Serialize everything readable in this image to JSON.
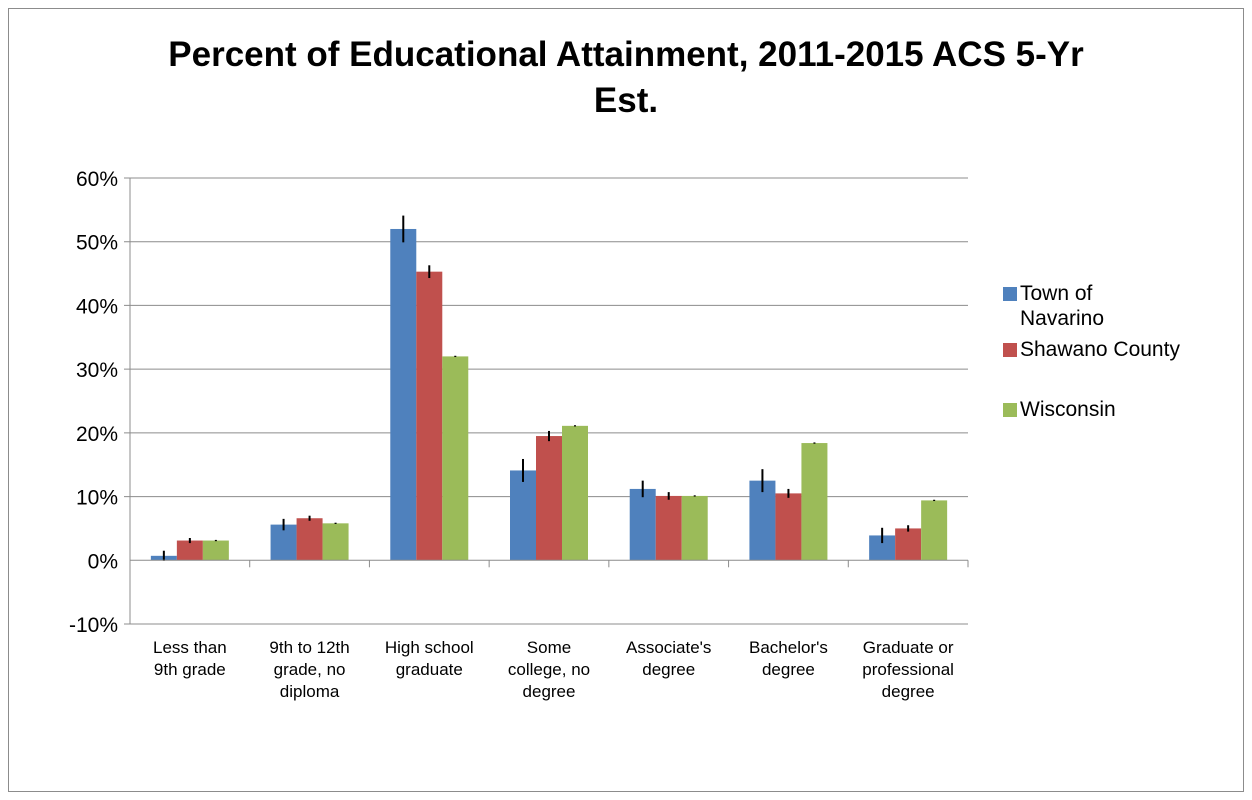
{
  "chart_data": {
    "type": "bar",
    "title": "Percent of Educational Attainment, 2011-2015 ACS 5-Yr Est.",
    "title_lines": [
      "Percent of Educational Attainment, 2011-2015 ACS 5-Yr",
      "Est."
    ],
    "xlabel": "",
    "ylabel": "",
    "ylim": [
      -10,
      60
    ],
    "yticks": [
      -10,
      0,
      10,
      20,
      30,
      40,
      50,
      60
    ],
    "ytick_labels": [
      "-10%",
      "0%",
      "10%",
      "20%",
      "30%",
      "40%",
      "50%",
      "60%"
    ],
    "grid": true,
    "legend_position": "right",
    "categories": [
      "Less than 9th grade",
      "9th to 12th grade, no diploma",
      "High school graduate",
      "Some college, no degree",
      "Associate's degree",
      "Bachelor's degree",
      "Graduate or professional degree"
    ],
    "category_lines": [
      [
        "Less than",
        "9th grade"
      ],
      [
        "9th to 12th",
        "grade, no",
        "diploma"
      ],
      [
        "High school",
        "graduate"
      ],
      [
        "Some",
        "college, no",
        "degree"
      ],
      [
        "Associate's",
        "degree"
      ],
      [
        "Bachelor's",
        "degree"
      ],
      [
        "Graduate or",
        "professional",
        "degree"
      ]
    ],
    "series": [
      {
        "name": "Town of Navarino",
        "legend_lines": [
          "Town of",
          "Navarino"
        ],
        "color": "#4f81bd",
        "values": [
          0.7,
          5.6,
          52.0,
          14.1,
          11.2,
          12.5,
          3.9
        ],
        "errors": [
          0.8,
          0.9,
          2.1,
          1.8,
          1.3,
          1.8,
          1.2
        ]
      },
      {
        "name": "Shawano County",
        "legend_lines": [
          "Shawano County"
        ],
        "color": "#c0504d",
        "values": [
          3.1,
          6.6,
          45.3,
          19.5,
          10.1,
          10.5,
          5.0
        ],
        "errors": [
          0.4,
          0.4,
          1.0,
          0.8,
          0.6,
          0.7,
          0.5
        ]
      },
      {
        "name": "Wisconsin",
        "legend_lines": [
          "Wisconsin"
        ],
        "color": "#9bbb59",
        "values": [
          3.1,
          5.8,
          32.0,
          21.1,
          10.1,
          18.4,
          9.4
        ],
        "errors": [
          0.1,
          0.1,
          0.1,
          0.1,
          0.1,
          0.1,
          0.1
        ]
      }
    ]
  }
}
